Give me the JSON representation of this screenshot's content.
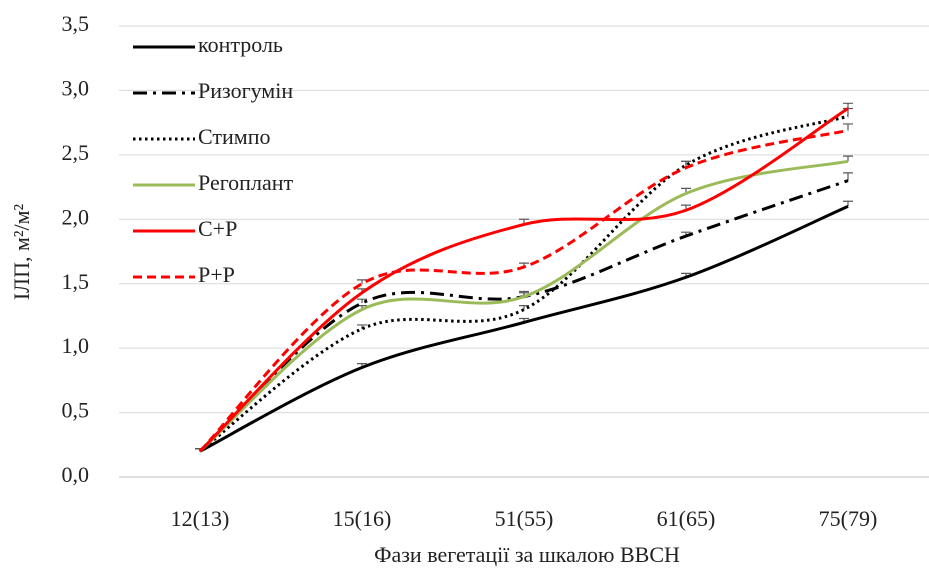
{
  "chart_data": {
    "type": "line",
    "x_label": "Фази вегетації за шкалою BBCH",
    "y_label": "ІЛП, м²/м²",
    "categories": [
      "12(13)",
      "15(16)",
      "51(55)",
      "61(65)",
      "75(79)"
    ],
    "series": [
      {
        "name": "контроль",
        "color": "#000000",
        "dash": "solid",
        "values": [
          0.2,
          0.85,
          1.2,
          1.55,
          2.1
        ],
        "errors": [
          0.02,
          0.03,
          0.03,
          0.03,
          0.04
        ]
      },
      {
        "name": "Ризогумін",
        "color": "#000000",
        "dash": "dashdot",
        "values": [
          0.2,
          1.35,
          1.4,
          1.87,
          2.3
        ],
        "errors": [
          0.02,
          0.03,
          0.03,
          0.03,
          0.06
        ]
      },
      {
        "name": "Стимпо",
        "color": "#000000",
        "dash": "dot",
        "values": [
          0.2,
          1.15,
          1.3,
          2.42,
          2.8
        ],
        "errors": [
          0.02,
          0.03,
          0.03,
          0.03,
          0.06
        ]
      },
      {
        "name": "Регоплант",
        "color": "#9bbb59",
        "dash": "solid",
        "values": [
          0.2,
          1.3,
          1.4,
          2.2,
          2.45
        ],
        "errors": [
          0.02,
          0.03,
          0.04,
          0.04,
          0.04
        ]
      },
      {
        "name": "С+Р",
        "color": "#ff0000",
        "dash": "solid",
        "values": [
          0.2,
          1.43,
          1.96,
          2.07,
          2.86
        ],
        "errors": [
          0.02,
          0.03,
          0.04,
          0.04,
          0.04
        ]
      },
      {
        "name": "Р+Р",
        "color": "#ff0000",
        "dash": "dash",
        "values": [
          0.2,
          1.5,
          1.63,
          2.4,
          2.69
        ],
        "errors": [
          0.02,
          0.03,
          0.03,
          0.05,
          0.05
        ]
      }
    ],
    "ylim": [
      0,
      3.5
    ],
    "yticks": [
      {
        "value": 0,
        "label": "0,0"
      },
      {
        "value": 0.5,
        "label": "0,5"
      },
      {
        "value": 1,
        "label": "1,0"
      },
      {
        "value": 1.5,
        "label": "1,5"
      },
      {
        "value": 2,
        "label": "2,0"
      },
      {
        "value": 2.5,
        "label": "2,5"
      },
      {
        "value": 3,
        "label": "3,0"
      },
      {
        "value": 3.5,
        "label": "3,5"
      }
    ],
    "grid": true,
    "legend": "top-left"
  }
}
